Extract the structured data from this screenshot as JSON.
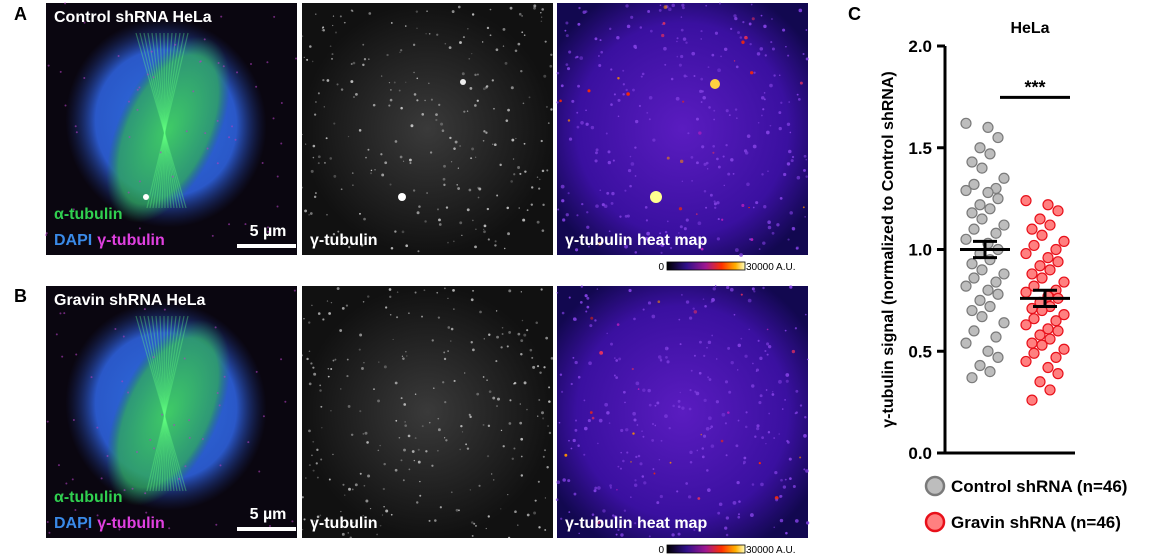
{
  "panel_labels": [
    "A",
    "B",
    "C"
  ],
  "rows": [
    {
      "title": "Control shRNA HeLa",
      "alpha_label": "α-tubulin",
      "dapi_label": "DAPI",
      "gamma_label": "γ-tubulin",
      "scale_bar": "5 µm",
      "gray_label": "γ-tubulin",
      "heat_label": "γ-tubulin heat map",
      "colorbar": {
        "min": "0",
        "max": "30000 A.U."
      }
    },
    {
      "title": "Gravin shRNA HeLa",
      "alpha_label": "α-tubulin",
      "dapi_label": "DAPI",
      "gamma_label": "γ-tubulin",
      "scale_bar": "5 µm",
      "gray_label": "γ-tubulin",
      "heat_label": "γ-tubulin heat map",
      "colorbar": {
        "min": "0",
        "max": "30000 A.U."
      }
    }
  ],
  "chart_data": {
    "type": "strip",
    "title": "HeLa",
    "y_label": "γ-tubulin signal (normalized to Control shRNA)",
    "ylim": [
      0,
      2
    ],
    "yticks": [
      {
        "value": 0,
        "label": "0.0"
      },
      0.5,
      {
        "value": 1,
        "label": "1.0"
      },
      1.5,
      {
        "value": 2,
        "label": "2.0"
      }
    ],
    "significance": "***",
    "series": [
      {
        "name": "Control shRNA (n=46)",
        "color": "#bdbdbd",
        "edge": "#7a7a7a",
        "mean": 1.0,
        "sem": 0.04,
        "values": [
          1.62,
          1.6,
          1.55,
          1.5,
          1.47,
          1.43,
          1.4,
          1.35,
          1.32,
          1.3,
          1.29,
          1.28,
          1.25,
          1.22,
          1.2,
          1.18,
          1.15,
          1.12,
          1.1,
          1.08,
          1.05,
          1.03,
          1.0,
          0.98,
          0.95,
          0.93,
          0.9,
          0.88,
          0.86,
          0.84,
          0.82,
          0.8,
          0.78,
          0.75,
          0.72,
          0.7,
          0.67,
          0.64,
          0.6,
          0.57,
          0.54,
          0.5,
          0.47,
          0.43,
          0.4,
          0.37
        ]
      },
      {
        "name": "Gravin shRNA (n=46)",
        "color": "#ff8080",
        "edge": "#e8101a",
        "mean": 0.76,
        "sem": 0.04,
        "values": [
          1.24,
          1.22,
          1.19,
          1.15,
          1.12,
          1.1,
          1.07,
          1.04,
          1.02,
          1.0,
          0.98,
          0.96,
          0.94,
          0.92,
          0.9,
          0.88,
          0.86,
          0.84,
          0.82,
          0.8,
          0.79,
          0.77,
          0.76,
          0.74,
          0.72,
          0.71,
          0.7,
          0.68,
          0.66,
          0.65,
          0.63,
          0.61,
          0.6,
          0.58,
          0.56,
          0.54,
          0.53,
          0.51,
          0.49,
          0.47,
          0.45,
          0.42,
          0.39,
          0.35,
          0.31,
          0.26
        ]
      }
    ]
  }
}
